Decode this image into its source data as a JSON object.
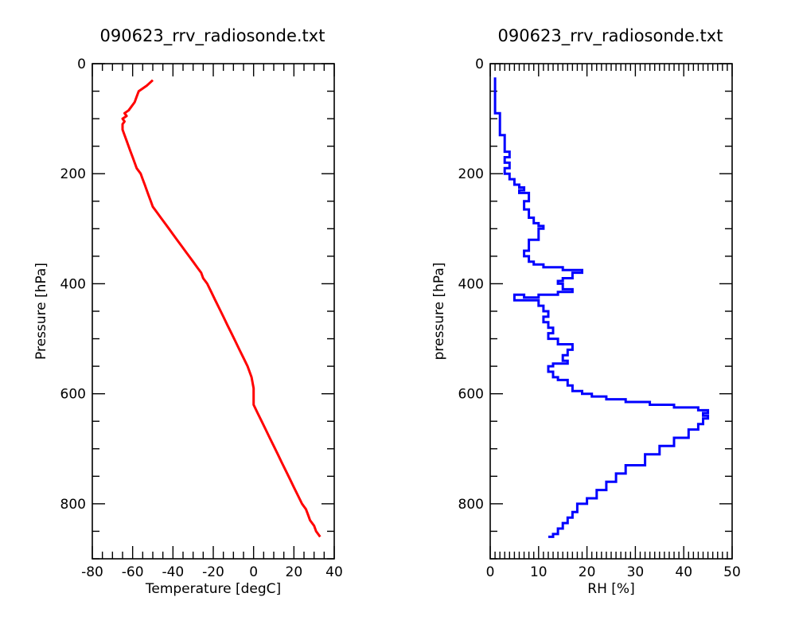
{
  "chart_data": [
    {
      "type": "line",
      "title": "090623_rrv_radiosonde.txt",
      "xlabel": "Temperature [degC]",
      "ylabel": "Pressure [hPa]",
      "xlim": [
        -80,
        40
      ],
      "ylim": [
        900,
        0
      ],
      "xticks": [
        -80,
        -60,
        -40,
        -20,
        0,
        20,
        40
      ],
      "yticks": [
        0,
        200,
        400,
        600,
        800
      ],
      "grid": false,
      "series": [
        {
          "color": "#ff0000",
          "x": [
            -50,
            -53,
            -57,
            -58,
            -59,
            -61,
            -62,
            -64,
            -63,
            -65,
            -64,
            -65,
            -65,
            -64,
            -63,
            -62,
            -61,
            -60,
            -59,
            -58,
            -56,
            -55,
            -54,
            -53,
            -52,
            -51,
            -50,
            -48,
            -46,
            -44,
            -42,
            -40,
            -38,
            -36,
            -34,
            -32,
            -30,
            -28,
            -26,
            -25,
            -23,
            -21,
            -19,
            -17,
            -15,
            -13,
            -11,
            -9,
            -7,
            -5,
            -3,
            -1,
            0,
            0,
            2,
            4,
            6,
            8,
            10,
            12,
            14,
            16,
            18,
            20,
            22,
            24,
            26,
            27,
            28,
            30,
            31,
            33
          ],
          "y": [
            30,
            40,
            50,
            60,
            70,
            80,
            85,
            90,
            95,
            100,
            105,
            110,
            120,
            130,
            140,
            150,
            160,
            170,
            180,
            190,
            200,
            210,
            220,
            230,
            240,
            250,
            260,
            270,
            280,
            290,
            300,
            310,
            320,
            330,
            340,
            350,
            360,
            370,
            380,
            390,
            400,
            415,
            430,
            445,
            460,
            475,
            490,
            505,
            520,
            535,
            550,
            570,
            590,
            620,
            635,
            650,
            665,
            680,
            695,
            710,
            725,
            740,
            755,
            770,
            785,
            800,
            810,
            820,
            830,
            840,
            850,
            860
          ]
        }
      ]
    },
    {
      "type": "line",
      "title": "090623_rrv_radiosonde.txt",
      "xlabel": "RH [%]",
      "ylabel": "pressure [hPa]",
      "xlim": [
        0,
        50
      ],
      "ylim": [
        900,
        0
      ],
      "xticks": [
        0,
        10,
        20,
        30,
        40,
        50
      ],
      "yticks": [
        0,
        200,
        400,
        600,
        800
      ],
      "grid": false,
      "series": [
        {
          "color": "#0000ff",
          "x": [
            1,
            1,
            2,
            2,
            3,
            3,
            4,
            3,
            4,
            3,
            4,
            5,
            5,
            6,
            7,
            6,
            8,
            7,
            8,
            9,
            10,
            11,
            10,
            8,
            7,
            8,
            9,
            11,
            15,
            19,
            17,
            15,
            14,
            15,
            17,
            14,
            10,
            7,
            5,
            10,
            11,
            12,
            11,
            12,
            13,
            12,
            14,
            17,
            16,
            15,
            16,
            13,
            12,
            13,
            14,
            16,
            17,
            19,
            21,
            24,
            28,
            33,
            38,
            43,
            45,
            44,
            45,
            44,
            43,
            41,
            38,
            35,
            32,
            28,
            26,
            24,
            22,
            20,
            18,
            17,
            16,
            15,
            14,
            13,
            12
          ],
          "y": [
            25,
            70,
            90,
            120,
            130,
            150,
            160,
            170,
            180,
            190,
            200,
            210,
            215,
            220,
            225,
            230,
            235,
            250,
            265,
            280,
            290,
            295,
            300,
            320,
            340,
            350,
            360,
            365,
            370,
            375,
            380,
            390,
            395,
            400,
            410,
            415,
            420,
            425,
            420,
            430,
            440,
            450,
            460,
            470,
            480,
            490,
            500,
            510,
            520,
            530,
            540,
            545,
            550,
            560,
            570,
            575,
            585,
            595,
            600,
            605,
            610,
            615,
            620,
            625,
            630,
            635,
            640,
            645,
            655,
            665,
            680,
            695,
            710,
            730,
            745,
            760,
            775,
            790,
            800,
            815,
            825,
            835,
            845,
            855,
            860
          ]
        }
      ]
    }
  ]
}
